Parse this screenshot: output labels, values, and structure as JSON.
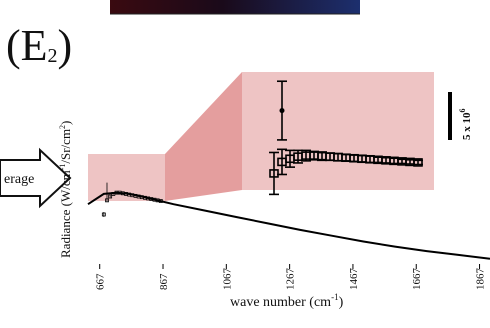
{
  "panel_label": "(E2)",
  "panel_label_main": "(E",
  "panel_label_sub": "2",
  "panel_label_close": ")",
  "arrow_label": "erage",
  "scale_bar_label": "5 x 10",
  "scale_bar_exp": "6",
  "colors": {
    "highlight": "#eec4c4",
    "connector": "#e39999",
    "line": "#000000",
    "top_strip_left": "#3a0a10",
    "top_strip_right": "#1c2f6e"
  },
  "chart_data": {
    "type": "line",
    "title": "",
    "xlabel": "wave number (cm-1)",
    "xlabel_parts": {
      "pre": "wave number (cm",
      "sup": "-1",
      "post": ")"
    },
    "ylabel": "Radiance (W/cm-1/Sr/cm2)",
    "ylabel_parts": {
      "pre": "Radiance (W/cm",
      "sup1": "-1",
      "mid": "/Sr/cm",
      "sup2": "2",
      "post": ")"
    },
    "xlim": [
      630,
      1900
    ],
    "x_ticks": [
      667,
      867,
      1067,
      1267,
      1467,
      1667,
      1867
    ],
    "x_tick_labels": [
      "667",
      "867",
      "1067",
      "1267",
      "1467",
      "1667",
      "1867"
    ],
    "grid": false,
    "series": [
      {
        "values_x": [
          630,
          680,
          720,
          760,
          800,
          850,
          900,
          1000,
          1100,
          1200,
          1300,
          1400,
          1500,
          1600,
          1700,
          1800,
          1900
        ],
        "values_y": [
          4.0,
          4.8,
          4.9,
          4.8,
          4.6,
          4.3,
          4.0,
          3.5,
          3.0,
          2.5,
          2.0,
          1.55,
          1.1,
          0.7,
          0.35,
          0.05,
          -0.25
        ]
      }
    ],
    "inset": {
      "xlim": [
        660,
        870
      ],
      "x": [
        680,
        690,
        700,
        710,
        720,
        730,
        740,
        750,
        760,
        770,
        780,
        790,
        800,
        810,
        820,
        830,
        840,
        850,
        860
      ],
      "y": [
        3.2,
        4.3,
        4.6,
        4.8,
        4.9,
        4.9,
        4.85,
        4.8,
        4.75,
        4.7,
        4.65,
        4.6,
        4.55,
        4.5,
        4.45,
        4.4,
        4.35,
        4.3,
        4.25
      ],
      "err": [
        2.0,
        1.2,
        0.8,
        0.6,
        0.5,
        0.4,
        0.4,
        0.35,
        0.35,
        0.3,
        0.3,
        0.3,
        0.3,
        0.25,
        0.25,
        0.25,
        0.2,
        0.2,
        0.2
      ],
      "outlier": {
        "x": 690,
        "y": 9.2,
        "err": 2.8
      }
    }
  }
}
